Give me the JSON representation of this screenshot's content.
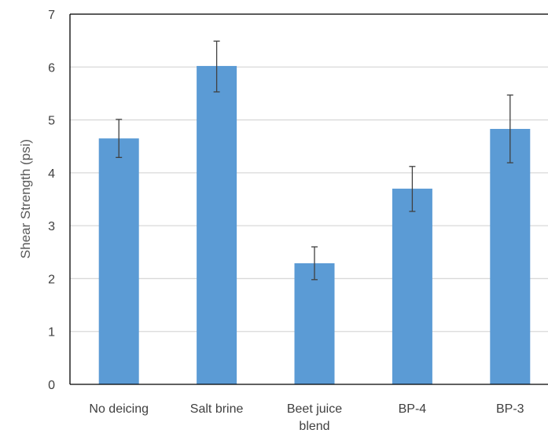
{
  "chart_data": {
    "type": "bar",
    "categories": [
      [
        "No deicing"
      ],
      [
        "Salt brine"
      ],
      [
        "Beet juice",
        "blend"
      ],
      [
        "BP-4"
      ],
      [
        "BP-3"
      ]
    ],
    "values": [
      4.65,
      6.02,
      2.29,
      3.7,
      4.83
    ],
    "error_low": [
      4.29,
      5.53,
      1.98,
      3.27,
      4.19
    ],
    "error_high": [
      5.01,
      6.49,
      2.6,
      4.12,
      5.47
    ],
    "ylabel": "Shear Strength (psi)",
    "ylim": [
      0,
      7
    ],
    "yticks": [
      "0",
      "1",
      "2",
      "3",
      "4",
      "5",
      "6",
      "7"
    ],
    "grid": true,
    "colors": {
      "bar": "#5B9BD5",
      "grid": "#D9D9D9",
      "axis": "#000000",
      "error": "#404040"
    }
  }
}
